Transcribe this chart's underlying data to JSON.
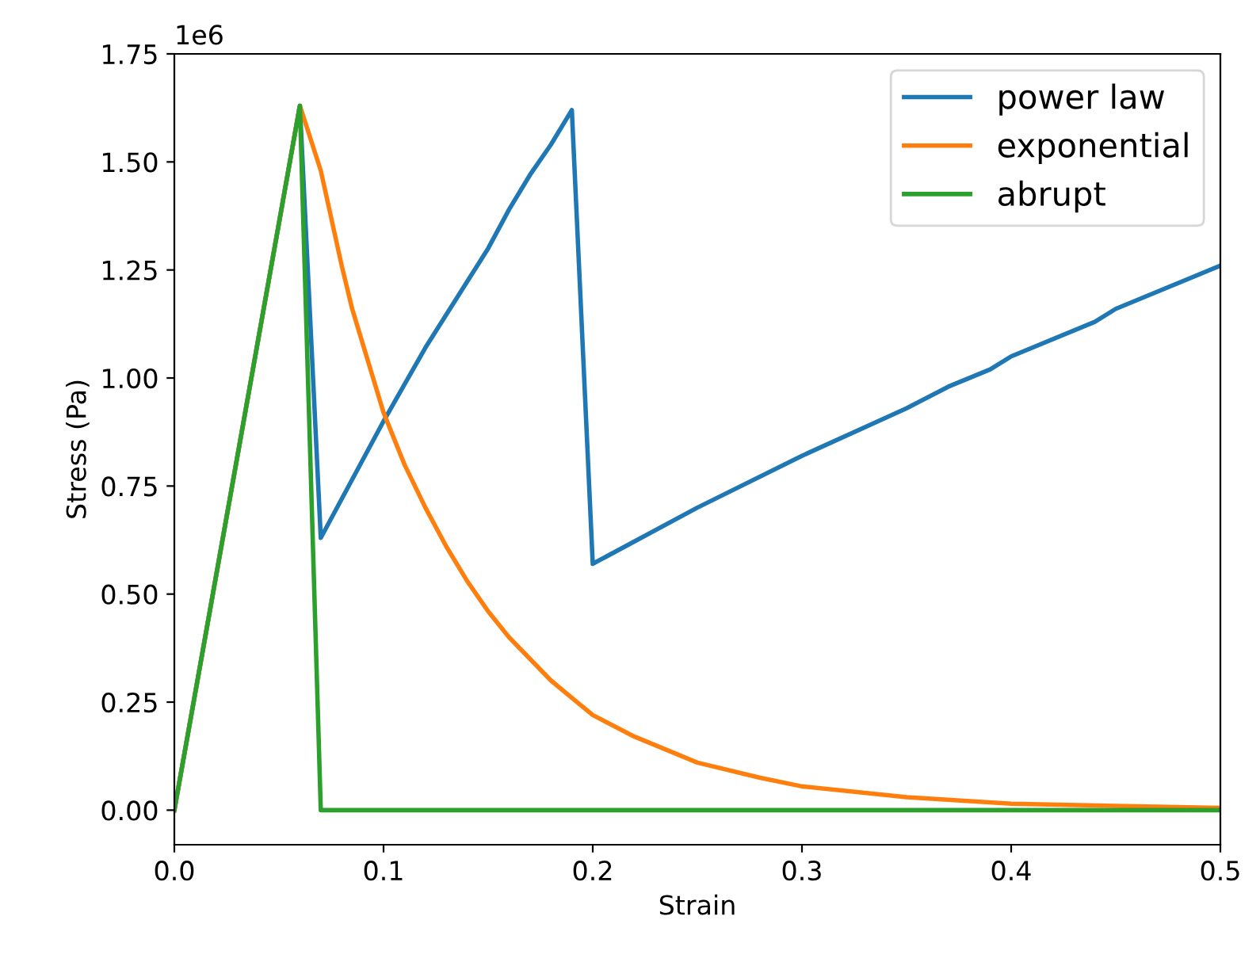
{
  "chart_data": {
    "type": "line",
    "xlabel": "Strain",
    "ylabel": "Stress (Pa)",
    "annotations": [
      "1e6"
    ],
    "xlim": [
      0,
      0.5
    ],
    "xticks": [
      {
        "value": 0,
        "label": "0.0"
      },
      0.1,
      0.2,
      0.3,
      0.4,
      0.5
    ],
    "ylim": [
      -0.08,
      1.75
    ],
    "yticks": [
      {
        "value": 0,
        "label": "0.00"
      },
      0.25,
      {
        "value": 0.5,
        "label": "0.50"
      },
      0.75,
      {
        "value": 1,
        "label": "1.00"
      },
      1.25,
      {
        "value": 1.5,
        "label": "1.50"
      },
      1.75
    ],
    "grid": false,
    "legend": "top right",
    "series": [
      {
        "name": "power law",
        "color": "#1f77b4",
        "x": [
          0,
          0.06,
          0.07,
          0.1,
          0.12,
          0.15,
          0.16,
          0.17,
          0.18,
          0.19,
          0.2,
          0.25,
          0.3,
          0.35,
          0.37,
          0.39,
          0.4,
          0.44,
          0.45,
          0.5
        ],
        "values": [
          0,
          1.63,
          0.63,
          0.9,
          1.07,
          1.3,
          1.39,
          1.47,
          1.54,
          1.62,
          0.57,
          0.7,
          0.82,
          0.93,
          0.98,
          1.02,
          1.05,
          1.13,
          1.16,
          1.26
        ]
      },
      {
        "name": "exponential",
        "color": "#ff7f0e",
        "x": [
          0,
          0.06,
          0.07,
          0.075,
          0.08,
          0.085,
          0.09,
          0.095,
          0.1,
          0.11,
          0.12,
          0.13,
          0.14,
          0.15,
          0.16,
          0.17,
          0.18,
          0.19,
          0.2,
          0.22,
          0.25,
          0.28,
          0.3,
          0.35,
          0.4,
          0.45,
          0.5
        ],
        "values": [
          0,
          1.63,
          1.48,
          1.37,
          1.26,
          1.16,
          1.08,
          1.0,
          0.92,
          0.8,
          0.7,
          0.61,
          0.53,
          0.46,
          0.4,
          0.35,
          0.3,
          0.26,
          0.22,
          0.17,
          0.11,
          0.075,
          0.055,
          0.03,
          0.015,
          0.01,
          0.005
        ]
      },
      {
        "name": "abrupt",
        "color": "#2ca02c",
        "x": [
          0,
          0.06,
          0.07,
          0.5
        ],
        "values": [
          0,
          1.63,
          0,
          0
        ]
      }
    ]
  }
}
